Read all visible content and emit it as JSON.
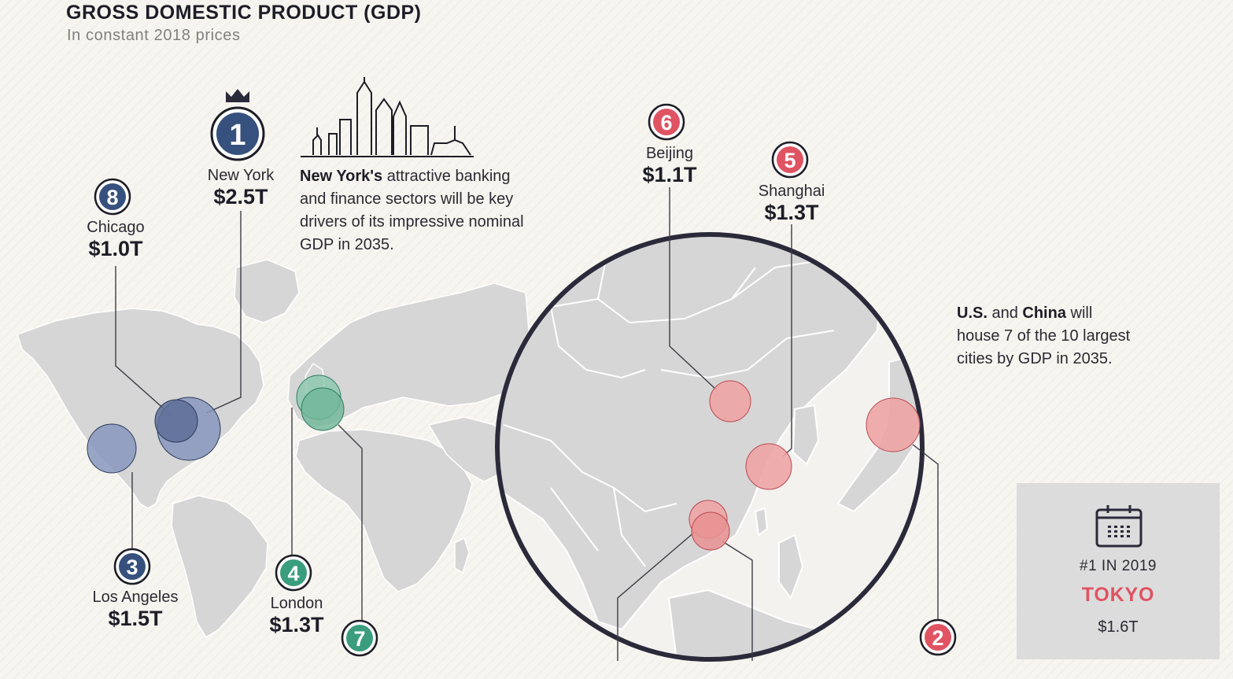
{
  "title": "GROSS DOMESTIC PRODUCT (GDP)",
  "subtitle": "In constant 2018 prices",
  "cities": [
    {
      "rank": "1",
      "name": "New York",
      "gdp": "$2.5T",
      "group": "us"
    },
    {
      "rank": "2",
      "name": "",
      "gdp": "",
      "group": "asia"
    },
    {
      "rank": "3",
      "name": "Los Angeles",
      "gdp": "$1.5T",
      "group": "us"
    },
    {
      "rank": "4",
      "name": "London",
      "gdp": "$1.3T",
      "group": "eu"
    },
    {
      "rank": "5",
      "name": "Shanghai",
      "gdp": "$1.3T",
      "group": "asia"
    },
    {
      "rank": "6",
      "name": "Beijing",
      "gdp": "$1.1T",
      "group": "asia"
    },
    {
      "rank": "7",
      "name": "",
      "gdp": "",
      "group": "eu"
    },
    {
      "rank": "8",
      "name": "Chicago",
      "gdp": "$1.0T",
      "group": "us"
    }
  ],
  "notes": {
    "new_york_bold": "New York's",
    "new_york_rest": " attractive banking and finance sectors will be key drivers of its impressive nominal GDP in 2035.",
    "us_bold": "U.S.",
    "and": " and ",
    "china_bold": "China",
    "us_china_rest": " will house 7 of the 10 largest cities by GDP in 2035."
  },
  "callout": {
    "label": "#1 IN 2019",
    "city": "TOKYO",
    "value": "$1.6T"
  },
  "icons": {
    "crown": "crown-icon",
    "skyline": "new-york-skyline-icon",
    "calendar": "calendar-icon"
  },
  "colors": {
    "us": "#37517e",
    "us_bubble": "#8796bd",
    "eu": "#3a9d7e",
    "eu_bubble": "#88c7ad",
    "asia": "#e05362",
    "asia_bubble": "#eea4a5",
    "land": "#d6d6d6",
    "ink": "#1d1d27"
  }
}
